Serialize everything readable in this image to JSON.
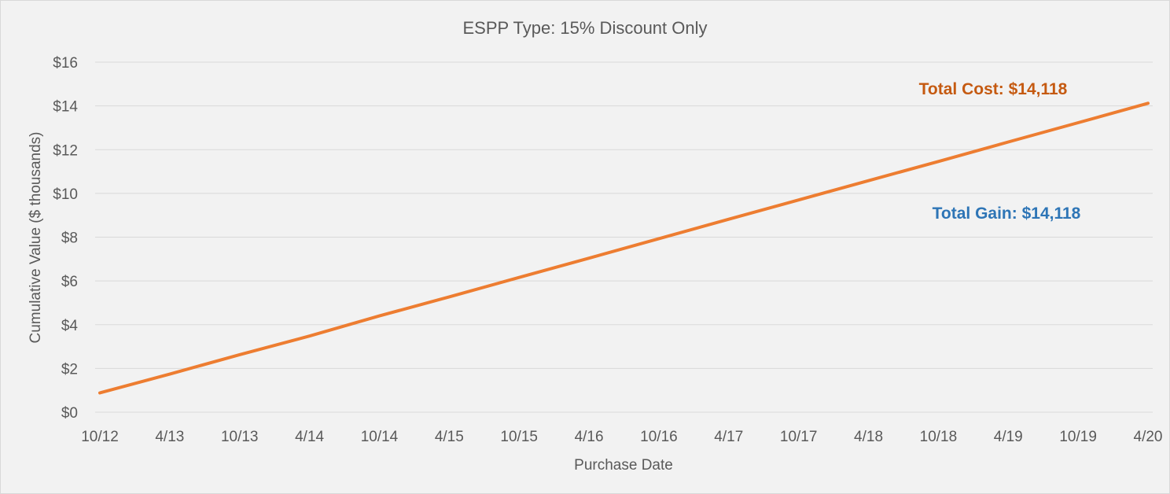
{
  "chart_data": {
    "type": "line",
    "title": "ESPP Type: 15% Discount Only",
    "xlabel": "Purchase Date",
    "ylabel": "Cumulative Value ($ thousands)",
    "categories": [
      "10/12",
      "4/13",
      "10/13",
      "4/14",
      "10/14",
      "4/15",
      "10/15",
      "4/16",
      "10/16",
      "4/17",
      "10/17",
      "4/18",
      "10/18",
      "4/19",
      "10/19",
      "4/20"
    ],
    "ylim": [
      0,
      16
    ],
    "yticks": [
      0,
      2,
      4,
      6,
      8,
      10,
      12,
      14,
      16
    ],
    "ytick_labels": [
      "$0",
      "$2",
      "$4",
      "$6",
      "$8",
      "$10",
      "$12",
      "$14",
      "$16"
    ],
    "grid": true,
    "legend": "none",
    "series": [
      {
        "color": "#ed7d31",
        "values": [
          0.88,
          1.74,
          2.63,
          3.48,
          4.4,
          5.27,
          6.16,
          7.04,
          7.93,
          8.82,
          9.7,
          10.58,
          11.46,
          12.35,
          13.23,
          14.118
        ]
      }
    ],
    "annotations": [
      {
        "id": "total-cost",
        "text": "Total Cost: $14,118",
        "color": "#c55a11"
      },
      {
        "id": "total-gain",
        "text": "Total Gain: $14,118",
        "color": "#2e75b6"
      }
    ]
  }
}
